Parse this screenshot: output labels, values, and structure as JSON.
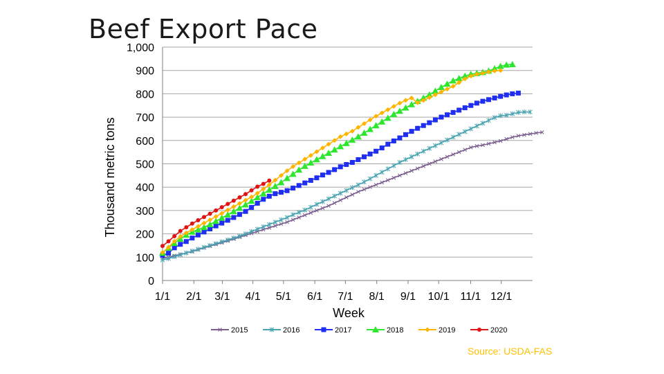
{
  "slide": {
    "title": "Beef Export Pace",
    "source": "Source: USDA-FAS"
  },
  "chart_data": {
    "type": "line",
    "title": "",
    "xlabel": "Week",
    "ylabel": "Thousand metric tons",
    "xlim": [
      1,
      53
    ],
    "ylim": [
      0,
      1000
    ],
    "grid": true,
    "legend_position": "bottom",
    "y_ticks": [
      {
        "value": 0,
        "label": "0"
      },
      {
        "value": 100,
        "label": "100"
      },
      {
        "value": 200,
        "label": "200"
      },
      {
        "value": 300,
        "label": "300"
      },
      {
        "value": 400,
        "label": "400"
      },
      {
        "value": 500,
        "label": "500"
      },
      {
        "value": 600,
        "label": "600"
      },
      {
        "value": 700,
        "label": "700"
      },
      {
        "value": 800,
        "label": "800"
      },
      {
        "value": 900,
        "label": "900"
      },
      {
        "value": 1000,
        "label": "1,000"
      }
    ],
    "x_ticks": [
      {
        "week": 1,
        "label": "1/1"
      },
      {
        "week": 5.4,
        "label": "2/1"
      },
      {
        "week": 9.4,
        "label": "3/1"
      },
      {
        "week": 13.7,
        "label": "4/1"
      },
      {
        "week": 18,
        "label": "5/1"
      },
      {
        "week": 22.4,
        "label": "6/1"
      },
      {
        "week": 26.7,
        "label": "7/1"
      },
      {
        "week": 31.1,
        "label": "8/1"
      },
      {
        "week": 35.5,
        "label": "9/1"
      },
      {
        "week": 39.8,
        "label": "10/1"
      },
      {
        "week": 44.3,
        "label": "11/1"
      },
      {
        "week": 48.6,
        "label": "12/1"
      }
    ],
    "series": [
      {
        "name": "2015",
        "color": "#7b5c8e",
        "marker": "x",
        "values": [
          95,
          100,
          106,
          112,
          118,
          124,
          132,
          140,
          148,
          155,
          162,
          170,
          178,
          186,
          194,
          202,
          210,
          218,
          226,
          234,
          242,
          250,
          260,
          270,
          280,
          290,
          300,
          310,
          320,
          332,
          344,
          356,
          368,
          380,
          390,
          400,
          410,
          420,
          430,
          440,
          450,
          460,
          470,
          480,
          490,
          500,
          510,
          520,
          530,
          540,
          550,
          560,
          570,
          576,
          580,
          586,
          592,
          598,
          606,
          614,
          620,
          624,
          628,
          632,
          635
        ]
      },
      {
        "name": "2016",
        "color": "#4aa3b2",
        "marker": "star",
        "values": [
          88,
          94,
          102,
          110,
          118,
          126,
          134,
          142,
          150,
          158,
          166,
          174,
          182,
          190,
          200,
          210,
          220,
          230,
          240,
          250,
          260,
          270,
          282,
          292,
          302,
          314,
          326,
          338,
          350,
          362,
          374,
          386,
          398,
          410,
          422,
          436,
          450,
          464,
          478,
          492,
          506,
          518,
          530,
          542,
          554,
          566,
          578,
          590,
          602,
          614,
          626,
          638,
          650,
          662,
          674,
          686,
          698,
          706,
          708,
          714,
          720,
          722,
          722
        ]
      },
      {
        "name": "2017",
        "color": "#1f2ef0",
        "marker": "square",
        "values": [
          108,
          117,
          140,
          155,
          167,
          182,
          195,
          208,
          221,
          234,
          246,
          258,
          270,
          283,
          296,
          313,
          331,
          348,
          361,
          372,
          378,
          385,
          396,
          407,
          418,
          429,
          440,
          452,
          463,
          475,
          487,
          497,
          506,
          518,
          530,
          542,
          554,
          568,
          584,
          598,
          611,
          625,
          639,
          652,
          664,
          676,
          688,
          700,
          710,
          720,
          730,
          740,
          750,
          760,
          768,
          775,
          782,
          789,
          795,
          800,
          803
        ]
      },
      {
        "name": "2018",
        "color": "#2ee62e",
        "marker": "triangle",
        "values": [
          118,
          140,
          160,
          178,
          195,
          208,
          218,
          228,
          240,
          254,
          268,
          282,
          296,
          310,
          325,
          340,
          356,
          372,
          388,
          404,
          420,
          438,
          456,
          474,
          490,
          504,
          518,
          532,
          546,
          560,
          574,
          588,
          602,
          616,
          632,
          648,
          664,
          680,
          696,
          712,
          726,
          740,
          754,
          768,
          782,
          796,
          812,
          828,
          842,
          856,
          866,
          876,
          884,
          888,
          892,
          898,
          908,
          918,
          924,
          926
        ]
      },
      {
        "name": "2019",
        "color": "#ffb400",
        "marker": "diamond",
        "values": [
          120,
          142,
          168,
          188,
          204,
          218,
          232,
          246,
          260,
          274,
          288,
          302,
          316,
          330,
          344,
          358,
          374,
          392,
          410,
          430,
          450,
          470,
          488,
          504,
          520,
          536,
          552,
          568,
          584,
          600,
          616,
          628,
          640,
          656,
          672,
          688,
          704,
          718,
          732,
          746,
          760,
          772,
          782,
          762,
          772,
          784,
          796,
          808,
          820,
          832,
          848,
          864,
          876,
          884,
          888,
          894,
          898,
          900
        ]
      },
      {
        "name": "2020",
        "color": "#e01414",
        "marker": "circle",
        "values": [
          148,
          168,
          190,
          212,
          228,
          244,
          258,
          272,
          286,
          300,
          314,
          328,
          342,
          356,
          370,
          386,
          402,
          414,
          428
        ]
      }
    ]
  }
}
